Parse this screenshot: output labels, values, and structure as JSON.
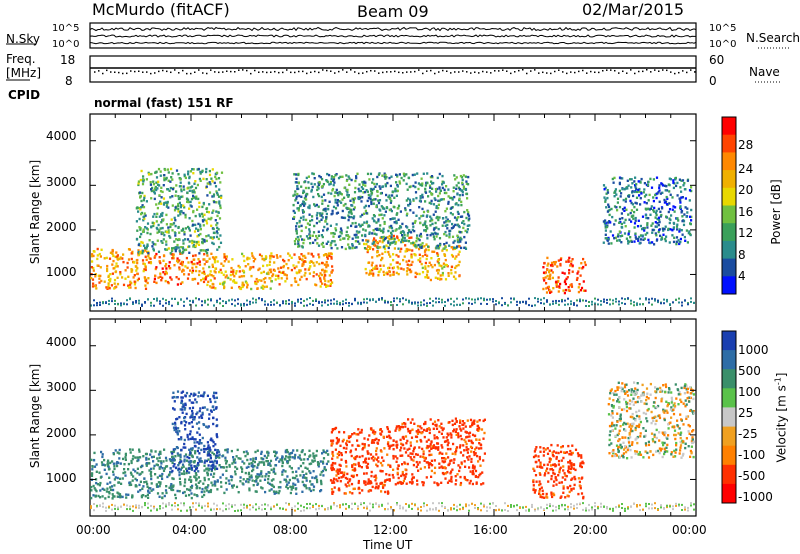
{
  "header": {
    "station": "McMurdo (fitACF)",
    "beam": "Beam 09",
    "date": "02/Mar/2015"
  },
  "top_panel": {
    "left_label": "N.Sky",
    "right_label": "N.Search",
    "left_ticks": [
      "10^5",
      "10^0"
    ],
    "right_ticks": [
      "10^5",
      "10^0"
    ]
  },
  "freq_panel": {
    "left_label_1": "Freq.",
    "left_label_2": "[MHz]",
    "left_ticks": [
      "18",
      "8"
    ],
    "right_label": "Nave",
    "right_ticks": [
      "60",
      "0"
    ]
  },
  "cpid": {
    "label": "CPID",
    "value": "normal (fast) 151 RF"
  },
  "power_panel": {
    "ylabel": "Slant Range [km]",
    "yticks": [
      "4000",
      "3000",
      "2000",
      "1000"
    ],
    "colorbar_label": "Power [dB]",
    "colorbar_ticks": [
      "28",
      "24",
      "20",
      "16",
      "12",
      "8",
      "4"
    ],
    "colorbar_colors": [
      "#ff0000",
      "#ff4400",
      "#ff8800",
      "#f0b000",
      "#e8d800",
      "#70c040",
      "#3aa05a",
      "#2a8c8c",
      "#1a4ca0",
      "#0010ff"
    ]
  },
  "velocity_panel": {
    "ylabel": "Slant Range [km]",
    "yticks": [
      "4000",
      "3000",
      "2000",
      "1000"
    ],
    "colorbar_label": "Velocity [m s",
    "colorbar_label_sup": "-1",
    "colorbar_label_end": "]",
    "colorbar_ticks": [
      "1000",
      "500",
      "100",
      "25",
      "-25",
      "-100",
      "-500",
      "-1000"
    ],
    "colorbar_colors": [
      "#1a3fb0",
      "#2e6da6",
      "#3a8f6a",
      "#5ac24a",
      "#c8c8c8",
      "#f0a020",
      "#ff8000",
      "#ff3000",
      "#ff0000"
    ]
  },
  "xaxis": {
    "ticks": [
      "00:00",
      "04:00",
      "08:00",
      "12:00",
      "16:00",
      "20:00",
      "00:00"
    ],
    "label": "Time UT"
  },
  "chart_data": [
    {
      "type": "heatmap",
      "title": "McMurdo (fitACF) Beam 09 02/Mar/2015",
      "xlabel": "Time UT",
      "ylabel": "Slant Range [km]",
      "xlim": [
        0,
        24
      ],
      "ylim": [
        180,
        4600
      ],
      "colorbar": "Power [dB]",
      "clim": [
        0,
        30
      ],
      "blobs": [
        {
          "x": [
            0.0,
            2.4
          ],
          "y": [
            700,
            1600
          ],
          "v": 22
        },
        {
          "x": [
            2.5,
            4.6
          ],
          "y": [
            800,
            1500
          ],
          "v": 24
        },
        {
          "x": [
            4.6,
            7.2
          ],
          "y": [
            700,
            1500
          ],
          "v": 20
        },
        {
          "x": [
            7.2,
            9.6
          ],
          "y": [
            750,
            1500
          ],
          "v": 22
        },
        {
          "x": [
            10.8,
            12.8
          ],
          "y": [
            1000,
            1900
          ],
          "v": 22
        },
        {
          "x": [
            12.8,
            14.6
          ],
          "y": [
            900,
            1700
          ],
          "v": 20
        },
        {
          "x": [
            17.9,
            19.6
          ],
          "y": [
            600,
            1400
          ],
          "v": 26
        },
        {
          "x": [
            1.8,
            5.2
          ],
          "y": [
            1500,
            3400
          ],
          "v": 10
        },
        {
          "x": [
            8.0,
            15.0
          ],
          "y": [
            1600,
            3300
          ],
          "v": 8
        },
        {
          "x": [
            20.3,
            23.8
          ],
          "y": [
            1700,
            3200
          ],
          "v": 6
        }
      ]
    },
    {
      "type": "heatmap",
      "title": "McMurdo (fitACF) Beam 09 02/Mar/2015",
      "xlabel": "Time UT",
      "ylabel": "Slant Range [km]",
      "xlim": [
        0,
        24
      ],
      "ylim": [
        180,
        4600
      ],
      "colorbar": "Velocity [m s-1]",
      "clim": [
        -1000,
        1000
      ],
      "blobs": [
        {
          "x": [
            0.0,
            4.8
          ],
          "y": [
            600,
            1700
          ],
          "v": 250
        },
        {
          "x": [
            4.8,
            9.4
          ],
          "y": [
            700,
            1700
          ],
          "v": 250
        },
        {
          "x": [
            3.2,
            5.0
          ],
          "y": [
            1200,
            3000
          ],
          "v": 800
        },
        {
          "x": [
            9.5,
            12.0
          ],
          "y": [
            700,
            2200
          ],
          "v": -400
        },
        {
          "x": [
            12.0,
            15.6
          ],
          "y": [
            900,
            2400
          ],
          "v": -400
        },
        {
          "x": [
            17.5,
            19.5
          ],
          "y": [
            600,
            1800
          ],
          "v": -400
        },
        {
          "x": [
            20.5,
            23.9
          ],
          "y": [
            1500,
            3200
          ],
          "v": 0
        }
      ]
    }
  ]
}
